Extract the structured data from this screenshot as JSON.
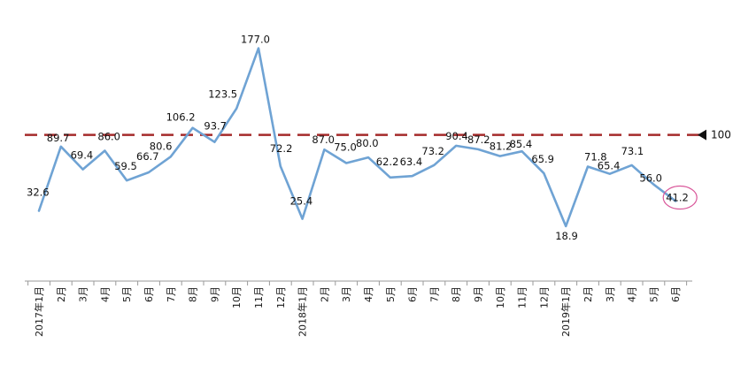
{
  "chart_data": {
    "type": "line",
    "categories": [
      "2017年1月",
      "2月",
      "3月",
      "4月",
      "5月",
      "6月",
      "7月",
      "8月",
      "9月",
      "10月",
      "11月",
      "12月",
      "2018年1月",
      "2月",
      "3月",
      "4月",
      "5月",
      "6月",
      "7月",
      "8月",
      "9月",
      "10月",
      "11月",
      "12月",
      "2019年1月",
      "2月",
      "3月",
      "4月",
      "5月",
      "6月"
    ],
    "series": [
      {
        "values": [
          32.6,
          89.7,
          69.4,
          86.0,
          59.5,
          66.7,
          80.6,
          106.2,
          93.7,
          123.5,
          177.0,
          72.2,
          25.4,
          87.0,
          75.0,
          80.0,
          62.2,
          63.4,
          73.2,
          90.4,
          87.2,
          81.2,
          85.4,
          65.9,
          18.9,
          71.8,
          65.4,
          73.1,
          56.0,
          41.2
        ]
      }
    ],
    "data_labels": [
      "32.6",
      "89.7",
      "69.4",
      "86.0",
      "59.5",
      "66.7",
      "80.6",
      "106.2",
      "93.7",
      "123.5",
      "177.0",
      "72.2",
      "25.4",
      "87.0",
      "75.0",
      "80.0",
      "62.2",
      "63.4",
      "73.2",
      "90.4",
      "87.2",
      "81.2",
      "85.4",
      "65.9",
      "18.9",
      "71.8",
      "65.4",
      "73.1",
      "56.0",
      "41.2"
    ],
    "reference_line": {
      "value": 100,
      "label": "100",
      "color": "#a52a2a",
      "style": "dashed"
    },
    "ylim": [
      0,
      190
    ],
    "line_color": "#6fa3d4",
    "highlight": {
      "index": 29,
      "color": "#d9579a"
    },
    "grid": false,
    "title": "",
    "xlabel": "",
    "ylabel": ""
  }
}
